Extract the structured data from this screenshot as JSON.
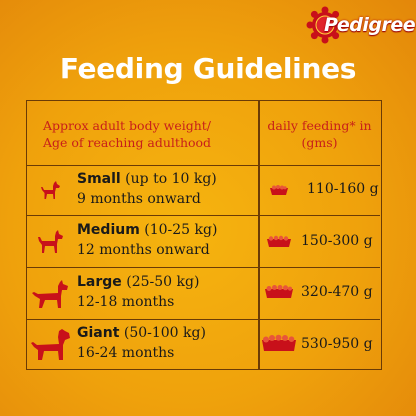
{
  "brand": {
    "name": "Pedigree"
  },
  "title": "Feeding Guidelines",
  "header": {
    "left_line1": "Approx adult body weight/",
    "left_line2": "Age of reaching adulthood",
    "right_line1": "daily feeding* in",
    "right_line2": "(gms)"
  },
  "rows": [
    {
      "size": "Small",
      "range": "(up to 10 kg)",
      "age": "9 months onward",
      "amount": "110-160 g",
      "icon": "small-dog-icon"
    },
    {
      "size": "Medium",
      "range": "(10-25 kg)",
      "age": "12 months onward",
      "amount": "150-300 g",
      "icon": "medium-dog-icon"
    },
    {
      "size": "Large",
      "range": "(25-50 kg)",
      "age": "12-18 months",
      "amount": "320-470 g",
      "icon": "large-dog-icon"
    },
    {
      "size": "Giant",
      "range": "(50-100 kg)",
      "age": "16-24 months",
      "amount": "530-950 g",
      "icon": "giant-dog-icon"
    }
  ],
  "colors": {
    "background": "#efa10c",
    "accent_red": "#c8201a",
    "border": "#6b3b05",
    "text": "#1a1a1a"
  }
}
